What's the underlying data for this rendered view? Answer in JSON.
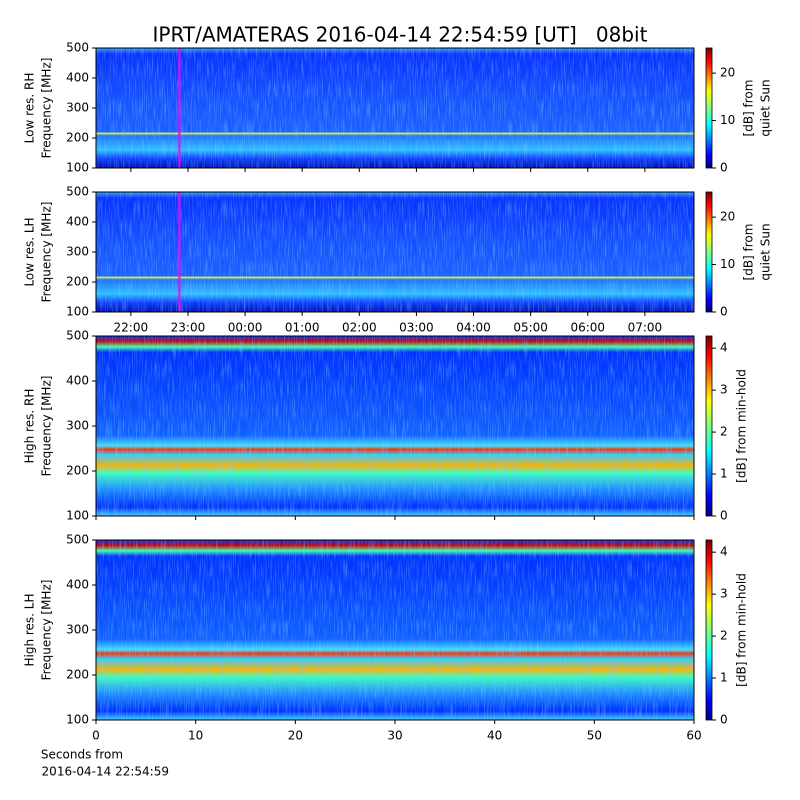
{
  "title": "IPRT/AMATERAS 2016-04-14 22:54:59 [UT]   08bit",
  "chart_data": [
    {
      "type": "heatmap",
      "ylabel": [
        "Low res. RH",
        "Frequency [MHz]"
      ],
      "ylim": [
        100,
        500
      ],
      "yticks": [
        100,
        200,
        300,
        400,
        500
      ],
      "xlim": [
        21.39,
        31.86
      ],
      "xticks": [
        22,
        23,
        24,
        25,
        26,
        27,
        28,
        29,
        30,
        31
      ],
      "xticklabels": false,
      "vline": {
        "x": 22.85,
        "color": "#ff00ff"
      },
      "colorbar": {
        "label": [
          "[dB] from",
          "quiet Sun"
        ],
        "lim": [
          0,
          25.3
        ],
        "ticks": [
          0,
          10,
          20
        ],
        "colormap": "jet"
      }
    },
    {
      "type": "heatmap",
      "ylabel": [
        "Low res. LH",
        "Frequency [MHz]"
      ],
      "ylim": [
        100,
        500
      ],
      "yticks": [
        100,
        200,
        300,
        400,
        500
      ],
      "xlim": [
        21.39,
        31.86
      ],
      "xticks": [
        {
          "value": 22,
          "label": "22:00"
        },
        {
          "value": 23,
          "label": "23:00"
        },
        {
          "value": 24,
          "label": "00:00"
        },
        {
          "value": 25,
          "label": "01:00"
        },
        {
          "value": 26,
          "label": "02:00"
        },
        {
          "value": 27,
          "label": "03:00"
        },
        {
          "value": 28,
          "label": "04:00"
        },
        {
          "value": 29,
          "label": "05:00"
        },
        {
          "value": 30,
          "label": "06:00"
        },
        {
          "value": 31,
          "label": "07:00"
        }
      ],
      "xticklabels": true,
      "vline": {
        "x": 22.85,
        "color": "#ff00ff"
      },
      "colorbar": {
        "label": [
          "[dB] from",
          "quiet Sun"
        ],
        "lim": [
          0,
          25.3
        ],
        "ticks": [
          0,
          10,
          20
        ],
        "colormap": "jet"
      }
    },
    {
      "type": "heatmap",
      "ylabel": [
        "High res. RH",
        "Frequency [MHz]"
      ],
      "ylim": [
        100,
        500
      ],
      "yticks": [
        100,
        200,
        300,
        400,
        500
      ],
      "xlim": [
        0,
        60
      ],
      "xticks": [
        0,
        10,
        20,
        30,
        40,
        50,
        60
      ],
      "xticklabels": false,
      "colorbar": {
        "label": [
          "[dB] from min-hold"
        ],
        "lim": [
          0,
          4.29
        ],
        "ticks": [
          0,
          1,
          2,
          3,
          4
        ],
        "colormap": "jet"
      }
    },
    {
      "type": "heatmap",
      "ylabel": [
        "High res. LH",
        "Frequency [MHz]"
      ],
      "ylim": [
        100,
        500
      ],
      "yticks": [
        100,
        200,
        300,
        400,
        500
      ],
      "xlim": [
        0,
        60
      ],
      "xticks": [
        0,
        10,
        20,
        30,
        40,
        50,
        60
      ],
      "xticklabels": true,
      "xlabel": [
        "Seconds from",
        "2016-04-14 22:54:59"
      ],
      "colorbar": {
        "label": [
          "[dB] from min-hold"
        ],
        "lim": [
          0,
          4.29
        ],
        "ticks": [
          0,
          1,
          2,
          3,
          4
        ],
        "colormap": "jet"
      }
    }
  ]
}
